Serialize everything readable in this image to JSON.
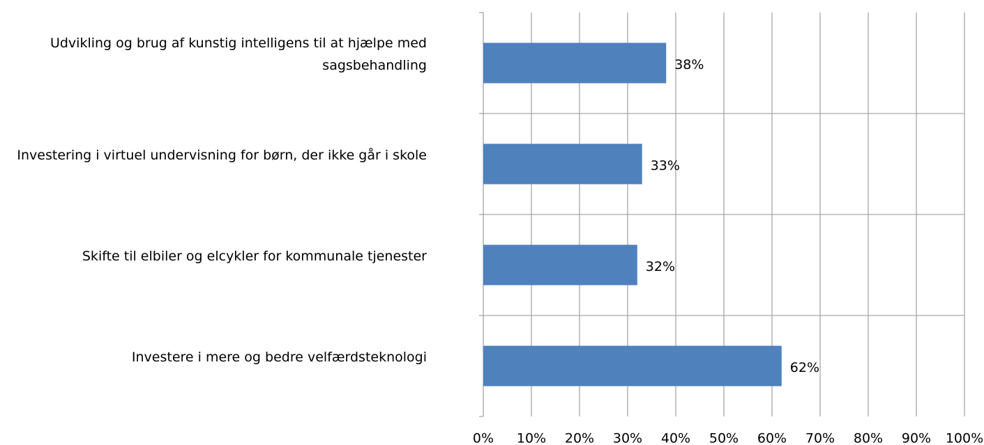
{
  "chart_data": {
    "type": "bar",
    "orientation": "horizontal",
    "categories": [
      "Udvikling og brug af kunstig intelligens til at hjælpe med sagsbehandling",
      "Investering i virtuel undervisning for børn, der ikke går i skole",
      "Skifte til elbiler og elcykler for kommunale tjenester",
      "Investere i mere og bedre velfærdsteknologi"
    ],
    "values": [
      38,
      33,
      32,
      62
    ],
    "value_labels": [
      "38%",
      "33%",
      "32%",
      "62%"
    ],
    "color": "#4f81bd",
    "xlim": [
      0,
      100
    ],
    "xticks": [
      {
        "value": 0,
        "label": "0%"
      },
      {
        "value": 10,
        "label": "10%"
      },
      {
        "value": 20,
        "label": "20%"
      },
      {
        "value": 30,
        "label": "30%"
      },
      {
        "value": 40,
        "label": "40%"
      },
      {
        "value": 50,
        "label": "50%"
      },
      {
        "value": 60,
        "label": "60%"
      },
      {
        "value": 70,
        "label": "70%"
      },
      {
        "value": 80,
        "label": "80%"
      },
      {
        "value": 90,
        "label": "90%"
      },
      {
        "value": 100,
        "label": "100%"
      }
    ],
    "grid": true
  }
}
